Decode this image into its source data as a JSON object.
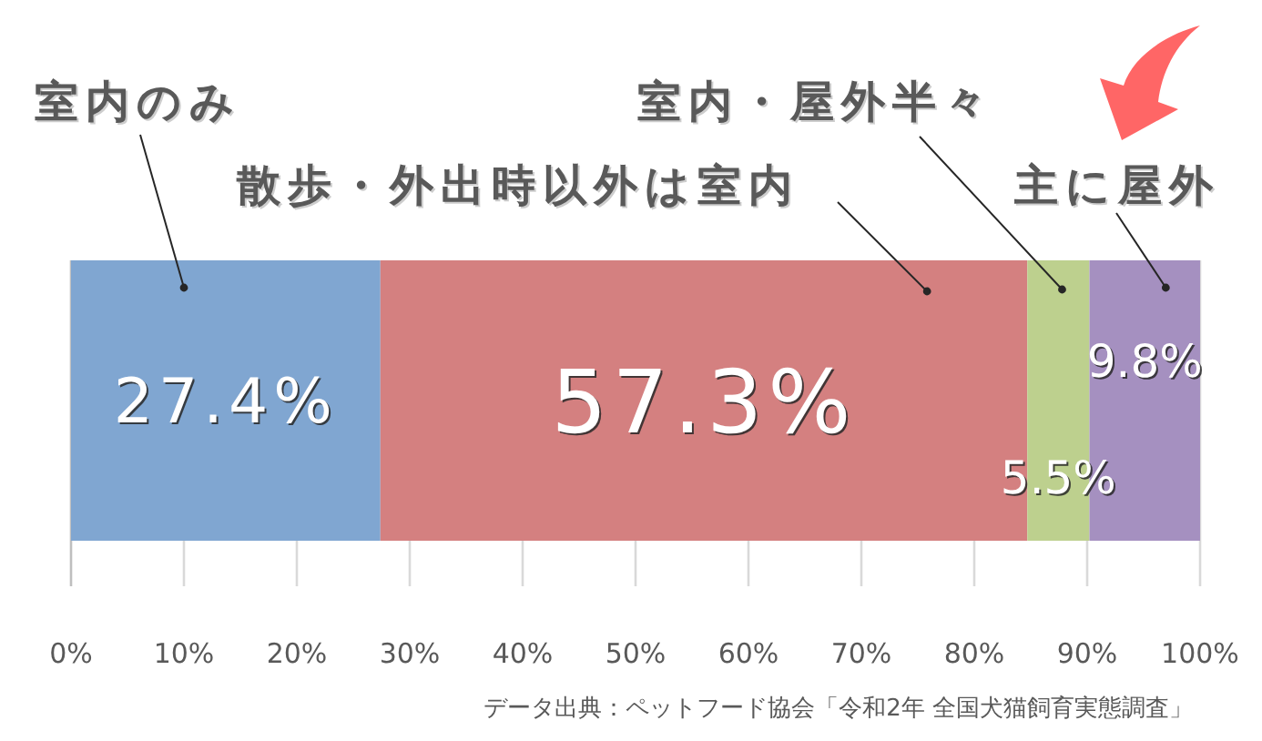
{
  "chart_data": {
    "type": "bar",
    "orientation": "horizontal",
    "stacked": true,
    "categories": [
      null
    ],
    "series": [
      {
        "name": "室内のみ",
        "color": "#80a6d1",
        "values": [
          27.4
        ],
        "value_labels": [
          "27.4%"
        ]
      },
      {
        "name": "散歩・外出時以外は室内",
        "color": "#d48080",
        "values": [
          57.3
        ],
        "value_labels": [
          "57.3%"
        ]
      },
      {
        "name": "室内・屋外半々",
        "color": "#bdd08e",
        "values": [
          5.5
        ],
        "value_labels": [
          "5.5%"
        ]
      },
      {
        "name": "主に屋外",
        "color": "#a590c0",
        "values": [
          9.8
        ],
        "value_labels": [
          "9.8%"
        ]
      }
    ],
    "xlim": [
      0,
      100
    ],
    "xticks": [
      {
        "value": 0,
        "label": "0%"
      },
      {
        "value": 10,
        "label": "10%"
      },
      {
        "value": 20,
        "label": "20%"
      },
      {
        "value": 30,
        "label": "30%"
      },
      {
        "value": 40,
        "label": "40%"
      },
      {
        "value": 50,
        "label": "50%"
      },
      {
        "value": 60,
        "label": "60%"
      },
      {
        "value": 70,
        "label": "70%"
      },
      {
        "value": 80,
        "label": "80%"
      },
      {
        "value": 90,
        "label": "90%"
      },
      {
        "value": 100,
        "label": "100%"
      }
    ],
    "grid": "x",
    "annotations": [
      "データ出典：ペットフード協会「令和2年 全国犬猫飼育実態調査」"
    ]
  }
}
